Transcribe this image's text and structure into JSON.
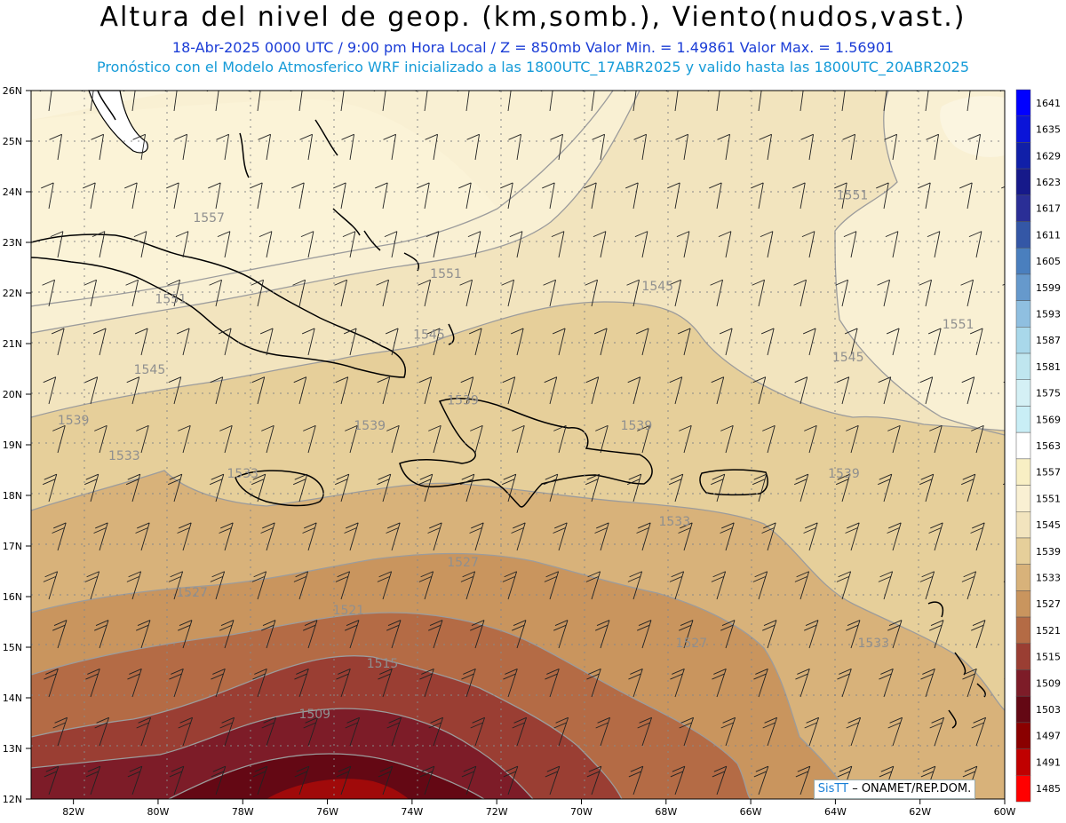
{
  "title": "Altura del nivel de geop. (km,somb.), Viento(nudos,vast.)",
  "subtitle1": "18-Abr-2025   0000 UTC / 9:00 pm Hora Local / Z = 850mb     Valor Min. = 1.49861   Valor Max. = 1.56901",
  "subtitle2": "Pronóstico con el Modelo Atmosferico WRF inicializado a las 1800UTC_17ABR2025 y valido hasta las  1800UTC_20ABR2025",
  "credit": {
    "brand": "SisTT",
    "org": " – ONAMET/REP.DOM."
  },
  "axes": {
    "lat_labels": [
      "26N",
      "25N",
      "24N",
      "23N",
      "22N",
      "21N",
      "20N",
      "19N",
      "18N",
      "17N",
      "16N",
      "15N",
      "14N",
      "13N",
      "12N"
    ],
    "lon_labels": [
      "82W",
      "80W",
      "78W",
      "76W",
      "74W",
      "72W",
      "70W",
      "68W",
      "66W",
      "64W",
      "62W",
      "60W"
    ]
  },
  "colorbar": {
    "labels": [
      "1641",
      "1635",
      "1629",
      "1623",
      "1617",
      "1611",
      "1605",
      "1599",
      "1593",
      "1587",
      "1581",
      "1575",
      "1569",
      "1563",
      "1557",
      "1551",
      "1545",
      "1539",
      "1533",
      "1527",
      "1521",
      "1515",
      "1509",
      "1503",
      "1497",
      "1491",
      "1485"
    ],
    "colors": [
      "#0000ff",
      "#0a14d8",
      "#101fa8",
      "#16198a",
      "#2a2e96",
      "#3457a6",
      "#4a7fbe",
      "#6699cc",
      "#8fbfe0",
      "#a9d8ea",
      "#bfe6ef",
      "#d4f0f5",
      "#c9eef6",
      "#ffffff",
      "#f8efc4",
      "#f9f0d3",
      "#f2e4be",
      "#e6cf9a",
      "#d8b27a",
      "#c9955e",
      "#b46b45",
      "#9a3e33",
      "#7d1c28",
      "#640814",
      "#8a0000",
      "#c00000",
      "#ff0000"
    ]
  },
  "contour_labels": [
    {
      "text": "1557",
      "lon": -78.8,
      "lat": 23.4
    },
    {
      "text": "1551",
      "lon": -79.7,
      "lat": 21.8
    },
    {
      "text": "1551",
      "lon": -73.2,
      "lat": 22.3
    },
    {
      "text": "1551",
      "lon": -63.6,
      "lat": 23.85
    },
    {
      "text": "1551",
      "lon": -61.1,
      "lat": 21.3
    },
    {
      "text": "1545",
      "lon": -80.2,
      "lat": 20.4
    },
    {
      "text": "1545",
      "lon": -73.6,
      "lat": 21.1
    },
    {
      "text": "1545",
      "lon": -68.2,
      "lat": 22.05
    },
    {
      "text": "1545",
      "lon": -63.7,
      "lat": 20.65
    },
    {
      "text": "1539",
      "lon": -82.0,
      "lat": 19.4
    },
    {
      "text": "1539",
      "lon": -75.0,
      "lat": 19.3
    },
    {
      "text": "1539",
      "lon": -72.8,
      "lat": 19.8
    },
    {
      "text": "1539",
      "lon": -68.7,
      "lat": 19.3
    },
    {
      "text": "1539",
      "lon": -63.8,
      "lat": 18.35
    },
    {
      "text": "1533",
      "lon": -80.8,
      "lat": 18.7
    },
    {
      "text": "1533",
      "lon": -78.0,
      "lat": 18.35
    },
    {
      "text": "1533",
      "lon": -67.8,
      "lat": 17.4
    },
    {
      "text": "1533",
      "lon": -63.1,
      "lat": 15.0
    },
    {
      "text": "1527",
      "lon": -79.2,
      "lat": 16.0
    },
    {
      "text": "1527",
      "lon": -72.8,
      "lat": 16.6
    },
    {
      "text": "1527",
      "lon": -67.4,
      "lat": 15.0
    },
    {
      "text": "1521",
      "lon": -75.5,
      "lat": 15.65
    },
    {
      "text": "1515",
      "lon": -74.7,
      "lat": 14.6
    },
    {
      "text": "1509",
      "lon": -76.3,
      "lat": 13.6
    }
  ]
}
